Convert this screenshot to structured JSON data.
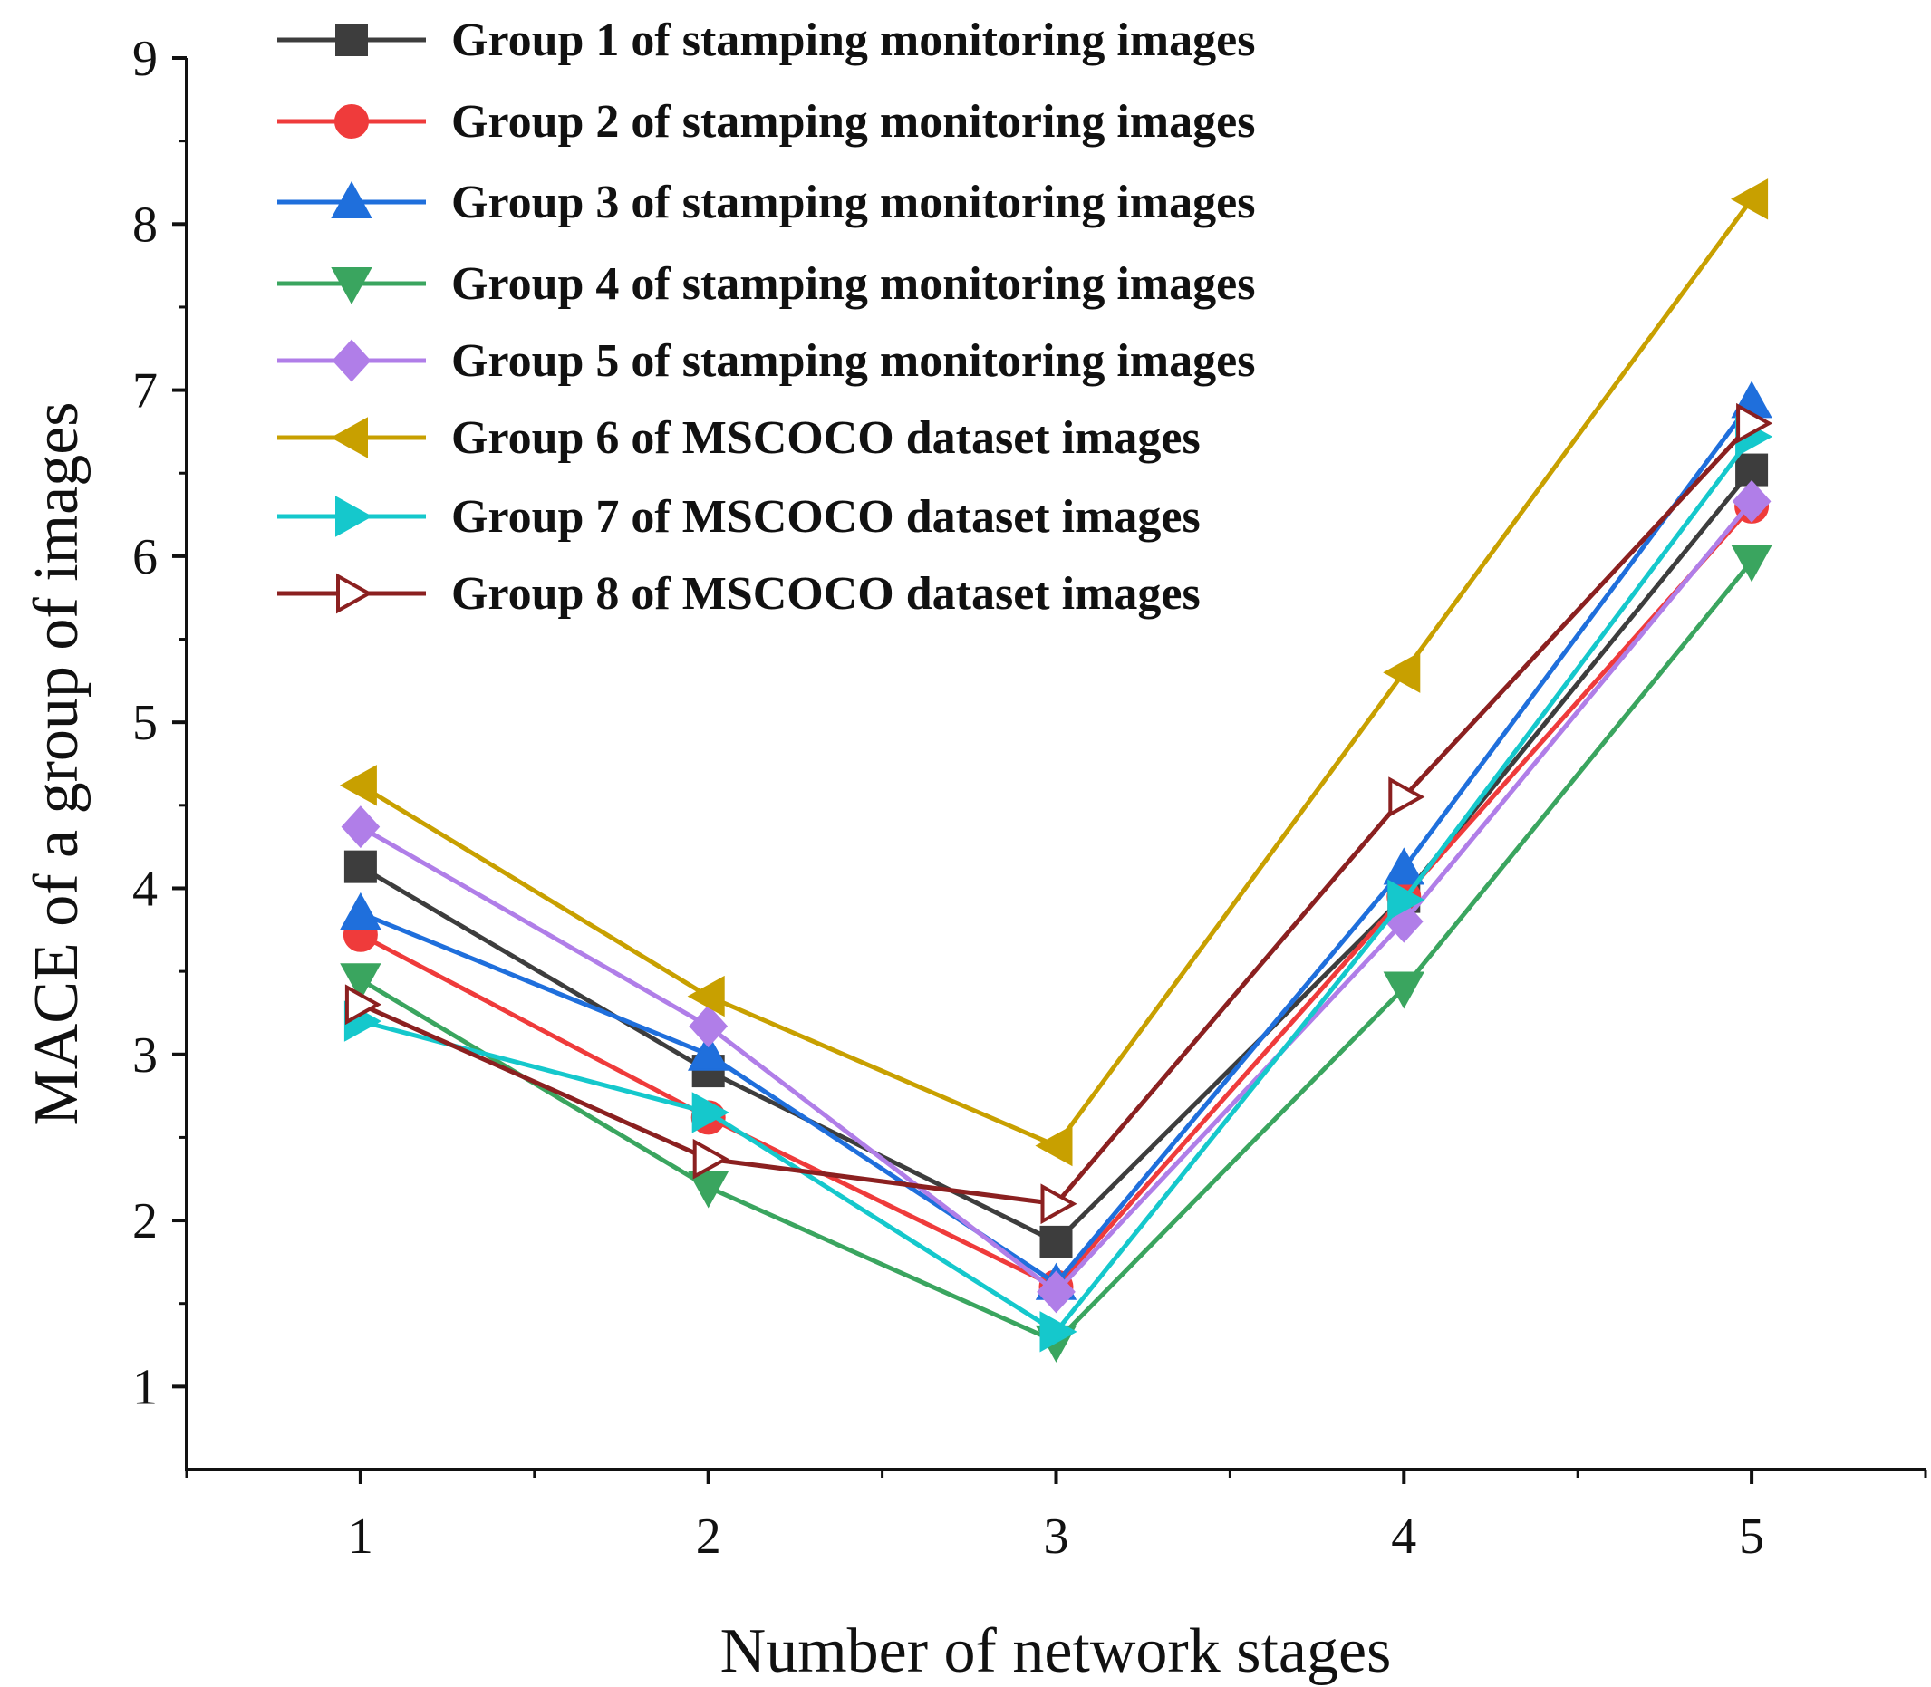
{
  "chart_data": {
    "type": "line",
    "title": "",
    "xlabel": "Number of network stages",
    "ylabel": "MACE of a group of images",
    "xlim": [
      0.5,
      5.5
    ],
    "ylim": [
      0.5,
      9
    ],
    "x": [
      1,
      2,
      3,
      4,
      5
    ],
    "x_ticks": [
      "1",
      "2",
      "3",
      "4",
      "5"
    ],
    "y_ticks": [
      "1",
      "2",
      "3",
      "4",
      "5",
      "6",
      "7",
      "8",
      "9"
    ],
    "legend_position": "top-left",
    "series": [
      {
        "name": "Group 1 of stamping monitoring images",
        "values": [
          4.13,
          2.9,
          1.87,
          3.95,
          6.52
        ],
        "color": "#3d3d3d",
        "marker": "square"
      },
      {
        "name": "Group 2 of stamping monitoring images",
        "values": [
          3.72,
          2.62,
          1.6,
          3.95,
          6.3
        ],
        "color": "#ef3b3b",
        "marker": "circle"
      },
      {
        "name": "Group 3 of stamping monitoring images",
        "values": [
          3.85,
          3.0,
          1.62,
          4.12,
          6.93
        ],
        "color": "#1f6fdc",
        "marker": "triangle-up"
      },
      {
        "name": "Group 4 of stamping monitoring images",
        "values": [
          3.45,
          2.2,
          1.27,
          3.4,
          5.97
        ],
        "color": "#3aa55f",
        "marker": "triangle-down"
      },
      {
        "name": "Group 5 of stamping monitoring images",
        "values": [
          4.37,
          3.17,
          1.57,
          3.8,
          6.33
        ],
        "color": "#b07ee8",
        "marker": "diamond"
      },
      {
        "name": "Group 6 of MSCOCO dataset images",
        "values": [
          4.62,
          3.35,
          2.45,
          5.3,
          8.15
        ],
        "color": "#c8a000",
        "marker": "triangle-left"
      },
      {
        "name": "Group 7 of MSCOCO dataset images",
        "values": [
          3.2,
          2.65,
          1.33,
          3.93,
          6.72
        ],
        "color": "#15c8cc",
        "marker": "triangle-right"
      },
      {
        "name": "Group 8 of MSCOCO dataset images",
        "values": [
          3.3,
          2.37,
          2.1,
          4.55,
          6.8
        ],
        "color": "#8b2020",
        "marker": "triangle-right-open"
      }
    ]
  }
}
